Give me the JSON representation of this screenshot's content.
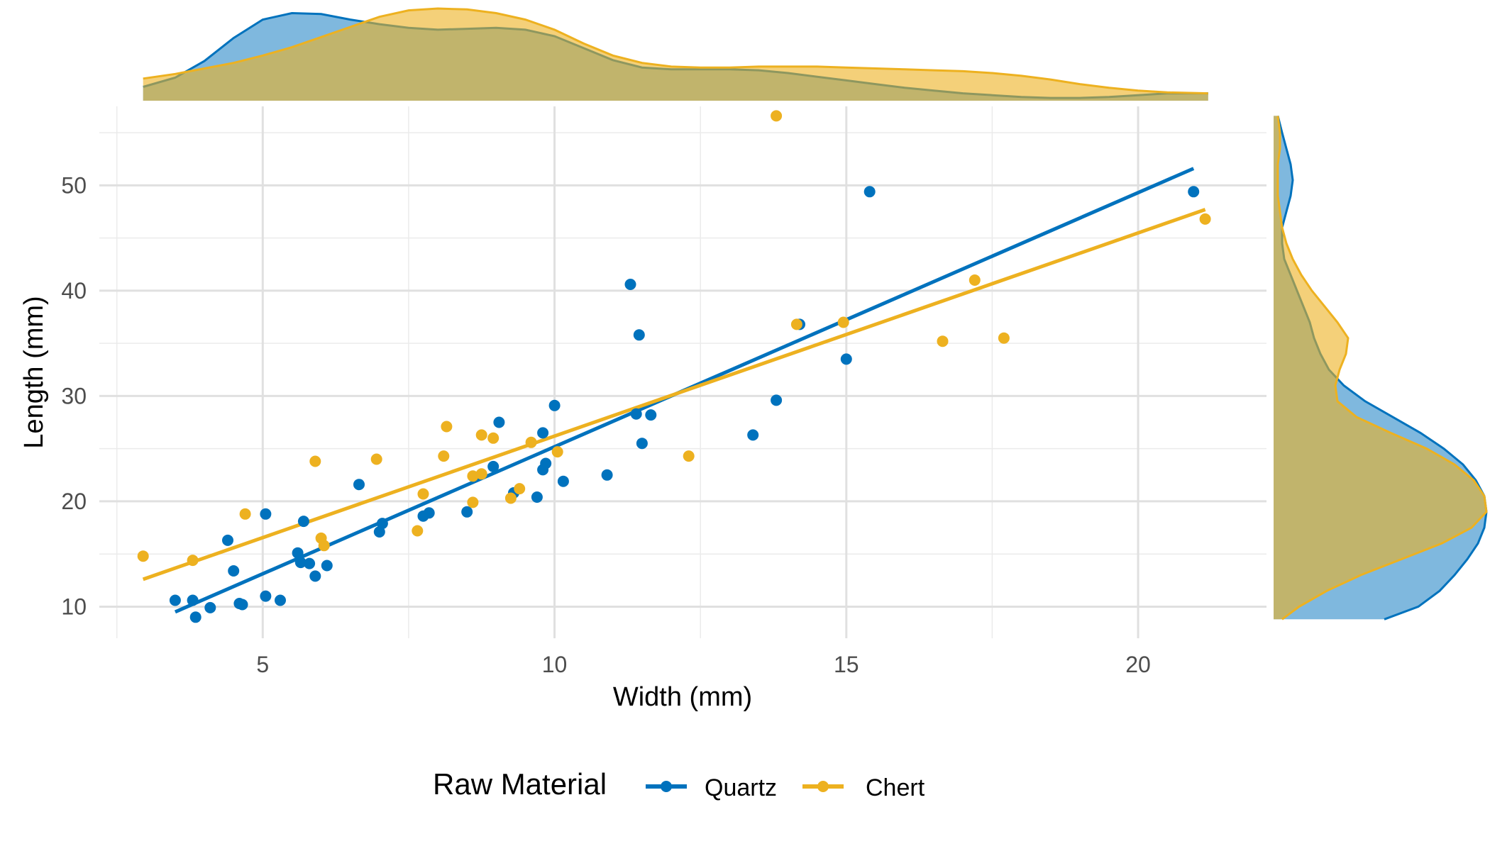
{
  "chart_data": {
    "type": "scatter",
    "xlabel": "Width (mm)",
    "ylabel": "Length (mm)",
    "xlim": [
      2.2,
      22.2
    ],
    "ylim": [
      7,
      57.5
    ],
    "x_ticks": [
      5,
      10,
      15,
      20
    ],
    "y_ticks": [
      10,
      20,
      30,
      40,
      50
    ],
    "grid": true,
    "legend": {
      "title": "Raw Material",
      "position": "bottom",
      "entries": [
        "Quartz",
        "Chert"
      ]
    },
    "series": [
      {
        "name": "Quartz",
        "color": "#0072BD",
        "points": [
          [
            3.5,
            10.6
          ],
          [
            3.8,
            10.6
          ],
          [
            3.85,
            9.0
          ],
          [
            4.1,
            9.9
          ],
          [
            4.4,
            16.3
          ],
          [
            4.5,
            13.4
          ],
          [
            4.6,
            10.3
          ],
          [
            4.65,
            10.2
          ],
          [
            5.05,
            18.8
          ],
          [
            5.05,
            11.0
          ],
          [
            5.3,
            10.6
          ],
          [
            5.6,
            15.1
          ],
          [
            5.65,
            14.2
          ],
          [
            5.7,
            18.1
          ],
          [
            5.8,
            14.1
          ],
          [
            5.9,
            12.9
          ],
          [
            6.1,
            13.9
          ],
          [
            6.65,
            21.6
          ],
          [
            7.0,
            17.1
          ],
          [
            7.05,
            17.9
          ],
          [
            7.75,
            18.6
          ],
          [
            7.85,
            18.9
          ],
          [
            8.5,
            19.0
          ],
          [
            8.95,
            23.3
          ],
          [
            9.05,
            27.5
          ],
          [
            9.3,
            20.8
          ],
          [
            9.7,
            20.4
          ],
          [
            9.8,
            26.5
          ],
          [
            9.8,
            23.0
          ],
          [
            9.85,
            23.6
          ],
          [
            10.0,
            29.1
          ],
          [
            10.15,
            21.9
          ],
          [
            10.9,
            22.5
          ],
          [
            11.3,
            40.6
          ],
          [
            11.4,
            28.3
          ],
          [
            11.45,
            35.8
          ],
          [
            11.5,
            25.5
          ],
          [
            11.65,
            28.2
          ],
          [
            13.4,
            26.3
          ],
          [
            13.8,
            29.6
          ],
          [
            14.2,
            36.8
          ],
          [
            15.0,
            33.5
          ],
          [
            15.4,
            49.4
          ],
          [
            20.95,
            49.4
          ]
        ],
        "fit_line": [
          [
            3.5,
            9.5
          ],
          [
            20.95,
            51.6
          ]
        ],
        "density_x": [
          [
            2.95,
            0.15
          ],
          [
            3.5,
            0.25
          ],
          [
            4.0,
            0.43
          ],
          [
            4.5,
            0.68
          ],
          [
            5.0,
            0.88
          ],
          [
            5.5,
            0.95
          ],
          [
            6.0,
            0.94
          ],
          [
            6.5,
            0.88
          ],
          [
            7.0,
            0.83
          ],
          [
            7.5,
            0.79
          ],
          [
            8.0,
            0.77
          ],
          [
            8.5,
            0.78
          ],
          [
            9.0,
            0.79
          ],
          [
            9.5,
            0.77
          ],
          [
            10.0,
            0.7
          ],
          [
            10.5,
            0.57
          ],
          [
            11.0,
            0.44
          ],
          [
            11.5,
            0.36
          ],
          [
            12.0,
            0.34
          ],
          [
            12.5,
            0.34
          ],
          [
            13.0,
            0.34
          ],
          [
            13.5,
            0.33
          ],
          [
            14.0,
            0.3
          ],
          [
            14.5,
            0.26
          ],
          [
            15.0,
            0.22
          ],
          [
            15.5,
            0.18
          ],
          [
            16.0,
            0.14
          ],
          [
            16.5,
            0.11
          ],
          [
            17.0,
            0.08
          ],
          [
            17.5,
            0.06
          ],
          [
            18.0,
            0.04
          ],
          [
            18.5,
            0.03
          ],
          [
            19.0,
            0.03
          ],
          [
            19.5,
            0.04
          ],
          [
            20.0,
            0.06
          ],
          [
            20.5,
            0.08
          ],
          [
            21.2,
            0.08
          ]
        ],
        "density_y": [
          [
            8.8,
            0.52
          ],
          [
            10.0,
            0.68
          ],
          [
            11.5,
            0.78
          ],
          [
            13.0,
            0.85
          ],
          [
            14.5,
            0.91
          ],
          [
            16.0,
            0.96
          ],
          [
            17.5,
            0.99
          ],
          [
            19.0,
            1.0
          ],
          [
            20.5,
            0.99
          ],
          [
            22.0,
            0.95
          ],
          [
            23.5,
            0.89
          ],
          [
            25.0,
            0.8
          ],
          [
            26.5,
            0.69
          ],
          [
            28.0,
            0.56
          ],
          [
            29.5,
            0.43
          ],
          [
            31.0,
            0.33
          ],
          [
            32.5,
            0.26
          ],
          [
            34.0,
            0.22
          ],
          [
            35.5,
            0.19
          ],
          [
            37.0,
            0.17
          ],
          [
            38.5,
            0.14
          ],
          [
            40.0,
            0.11
          ],
          [
            41.5,
            0.08
          ],
          [
            43.0,
            0.05
          ],
          [
            44.5,
            0.04
          ],
          [
            46.0,
            0.04
          ],
          [
            47.5,
            0.06
          ],
          [
            49.0,
            0.08
          ],
          [
            50.5,
            0.09
          ],
          [
            52.0,
            0.08
          ],
          [
            53.5,
            0.06
          ],
          [
            55.0,
            0.04
          ],
          [
            56.6,
            0.02
          ]
        ]
      },
      {
        "name": "Chert",
        "color": "#EDB120",
        "points": [
          [
            2.95,
            14.8
          ],
          [
            3.8,
            14.4
          ],
          [
            4.7,
            18.8
          ],
          [
            5.9,
            23.8
          ],
          [
            6.0,
            16.5
          ],
          [
            6.05,
            15.8
          ],
          [
            6.95,
            24.0
          ],
          [
            7.65,
            17.2
          ],
          [
            7.75,
            20.7
          ],
          [
            8.1,
            24.3
          ],
          [
            8.15,
            27.1
          ],
          [
            8.6,
            22.4
          ],
          [
            8.6,
            19.9
          ],
          [
            8.75,
            22.6
          ],
          [
            8.75,
            26.3
          ],
          [
            8.95,
            26.0
          ],
          [
            9.25,
            20.3
          ],
          [
            9.4,
            21.2
          ],
          [
            9.6,
            25.6
          ],
          [
            10.05,
            24.7
          ],
          [
            12.3,
            24.3
          ],
          [
            13.8,
            56.6
          ],
          [
            14.15,
            36.8
          ],
          [
            14.95,
            37.0
          ],
          [
            16.65,
            35.2
          ],
          [
            17.2,
            41.0
          ],
          [
            17.7,
            35.5
          ],
          [
            21.15,
            46.8
          ]
        ],
        "fit_line": [
          [
            2.95,
            12.6
          ],
          [
            21.15,
            47.7
          ]
        ],
        "density_x": [
          [
            2.95,
            0.24
          ],
          [
            3.5,
            0.29
          ],
          [
            4.0,
            0.35
          ],
          [
            4.5,
            0.41
          ],
          [
            5.0,
            0.49
          ],
          [
            5.5,
            0.58
          ],
          [
            6.0,
            0.69
          ],
          [
            6.5,
            0.8
          ],
          [
            7.0,
            0.91
          ],
          [
            7.5,
            0.98
          ],
          [
            8.0,
            1.0
          ],
          [
            8.5,
            0.99
          ],
          [
            9.0,
            0.95
          ],
          [
            9.5,
            0.88
          ],
          [
            10.0,
            0.77
          ],
          [
            10.5,
            0.62
          ],
          [
            11.0,
            0.49
          ],
          [
            11.5,
            0.41
          ],
          [
            12.0,
            0.37
          ],
          [
            12.5,
            0.36
          ],
          [
            13.0,
            0.36
          ],
          [
            13.5,
            0.37
          ],
          [
            14.0,
            0.37
          ],
          [
            14.5,
            0.37
          ],
          [
            15.0,
            0.36
          ],
          [
            15.5,
            0.35
          ],
          [
            16.0,
            0.34
          ],
          [
            16.5,
            0.33
          ],
          [
            17.0,
            0.32
          ],
          [
            17.5,
            0.3
          ],
          [
            18.0,
            0.27
          ],
          [
            18.5,
            0.23
          ],
          [
            19.0,
            0.18
          ],
          [
            19.5,
            0.14
          ],
          [
            20.0,
            0.11
          ],
          [
            20.5,
            0.09
          ],
          [
            21.2,
            0.08
          ]
        ],
        "density_y": [
          [
            8.8,
            0.04
          ],
          [
            10.0,
            0.12
          ],
          [
            11.5,
            0.25
          ],
          [
            13.0,
            0.41
          ],
          [
            14.5,
            0.6
          ],
          [
            16.0,
            0.79
          ],
          [
            17.5,
            0.93
          ],
          [
            19.0,
            1.0
          ],
          [
            20.5,
            0.99
          ],
          [
            22.0,
            0.94
          ],
          [
            23.5,
            0.85
          ],
          [
            25.0,
            0.72
          ],
          [
            26.5,
            0.55
          ],
          [
            28.0,
            0.39
          ],
          [
            29.5,
            0.3
          ],
          [
            31.0,
            0.29
          ],
          [
            32.5,
            0.31
          ],
          [
            34.0,
            0.34
          ],
          [
            35.5,
            0.35
          ],
          [
            37.0,
            0.3
          ],
          [
            38.5,
            0.24
          ],
          [
            40.0,
            0.18
          ],
          [
            41.5,
            0.13
          ],
          [
            43.0,
            0.09
          ],
          [
            44.5,
            0.06
          ],
          [
            46.0,
            0.04
          ],
          [
            47.5,
            0.03
          ],
          [
            49.0,
            0.02
          ],
          [
            50.5,
            0.02
          ],
          [
            52.0,
            0.02
          ],
          [
            53.5,
            0.03
          ],
          [
            55.0,
            0.03
          ],
          [
            56.6,
            0.02
          ]
        ]
      }
    ]
  }
}
